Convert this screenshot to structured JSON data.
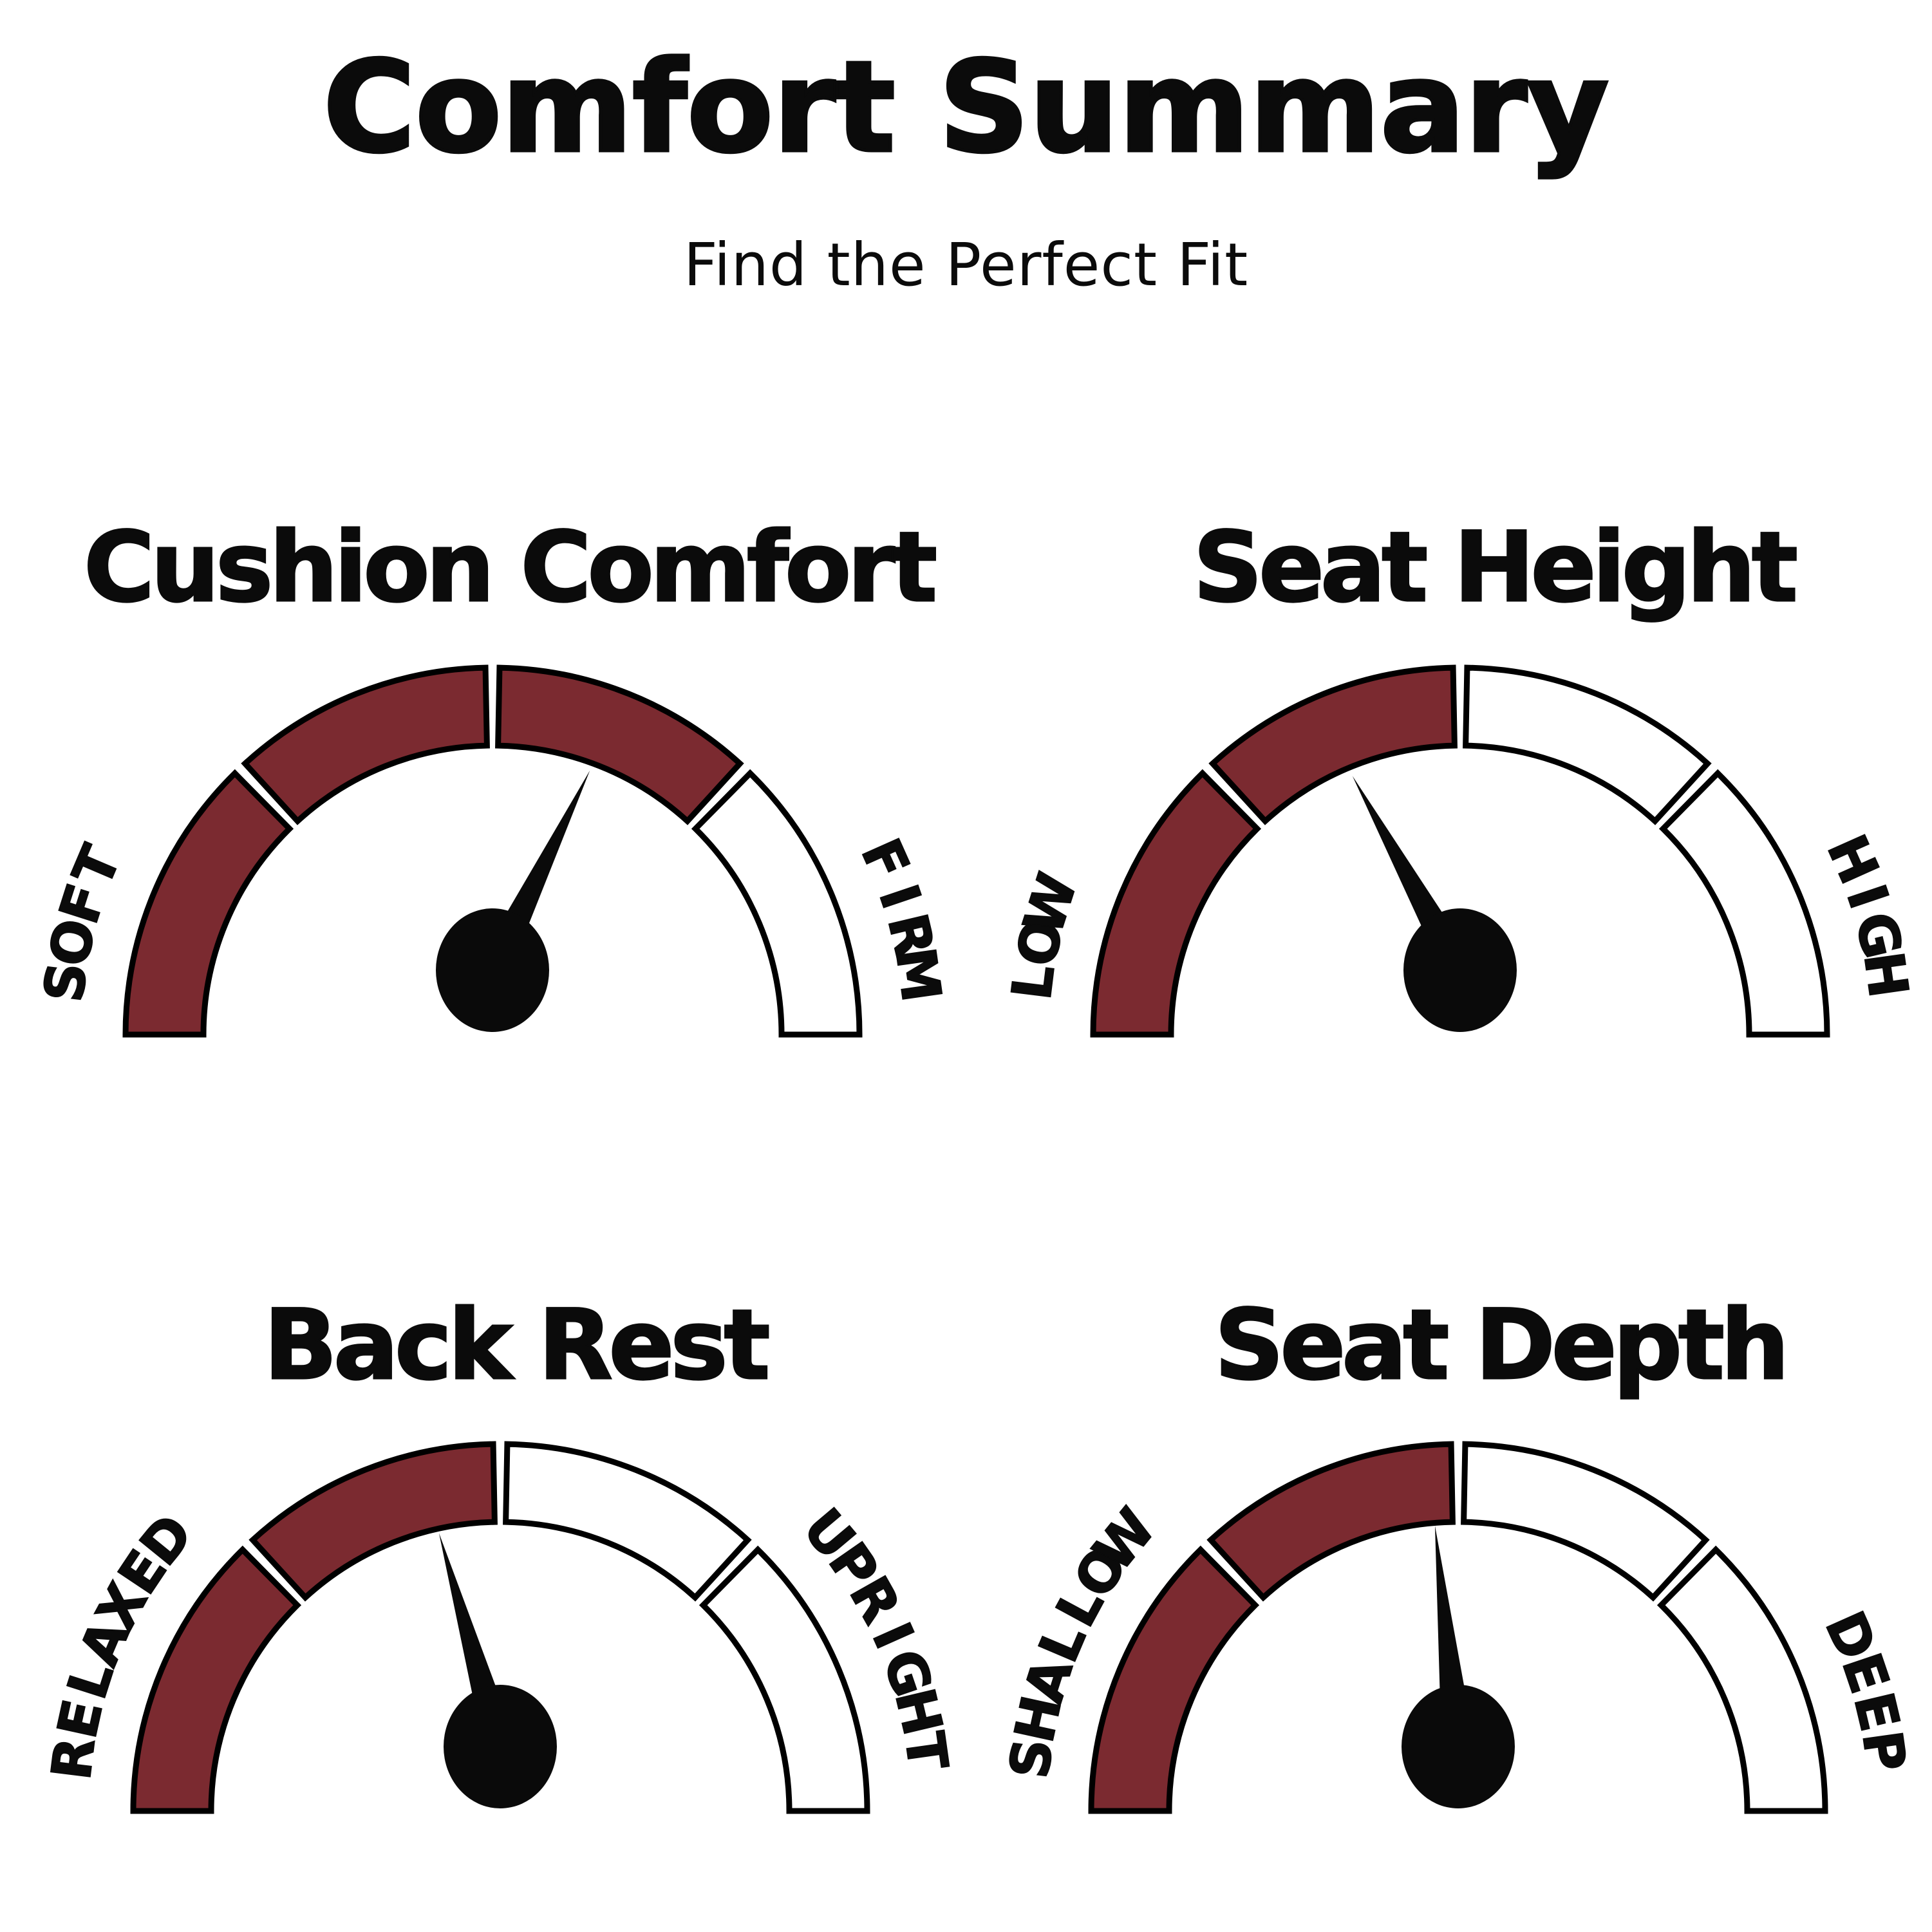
{
  "header": {
    "title": "Comfort Summary",
    "subtitle": "Find the Perfect Fit"
  },
  "colors": {
    "filled_segment": "#7b2a30",
    "empty_segment": "#ffffff",
    "outline": "#000000",
    "needle": "#0a0a0a",
    "text": "#0b0b0b",
    "background": "#ffffff"
  },
  "chart_data": [
    {
      "type": "gauge",
      "id": "cushion-comfort",
      "title": "Cushion Comfort",
      "left_label": "SOFT",
      "right_label": "FIRM",
      "segments_total": 4,
      "segments_filled": 3,
      "needle_angle_deg": 64,
      "value_percent": 64
    },
    {
      "type": "gauge",
      "id": "seat-height",
      "title": "Seat Height",
      "left_label": "LOW",
      "right_label": "HIGH",
      "segments_total": 4,
      "segments_filled": 2,
      "needle_angle_deg": 119,
      "value_percent": 34
    },
    {
      "type": "gauge",
      "id": "back-rest",
      "title": "Back Rest",
      "left_label": "RELAXED",
      "right_label": "UPRIGHT",
      "segments_total": 4,
      "segments_filled": 2,
      "needle_angle_deg": 106,
      "value_percent": 41
    },
    {
      "type": "gauge",
      "id": "seat-depth",
      "title": "Seat Depth",
      "left_label": "SHALLOW",
      "right_label": "DEEP",
      "segments_total": 4,
      "segments_filled": 2,
      "needle_angle_deg": 96,
      "value_percent": 47
    }
  ]
}
